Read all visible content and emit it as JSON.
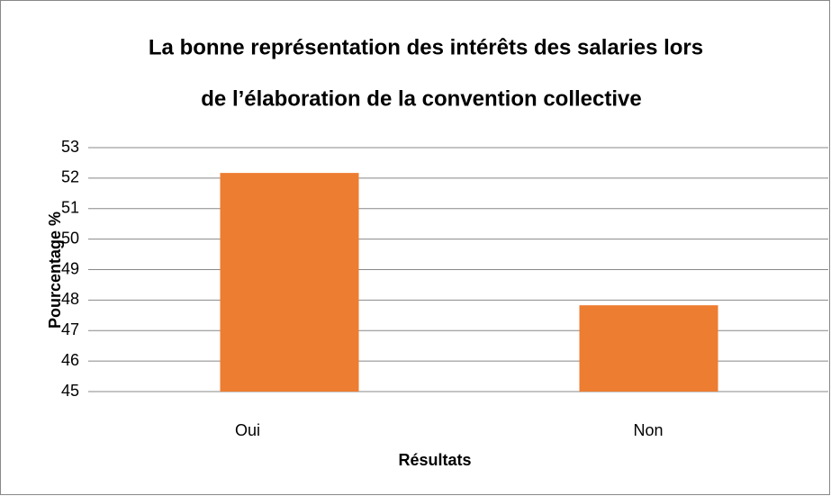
{
  "chart_data": {
    "type": "bar",
    "title": [
      "La bonne représentation des intérêts des salaries lors",
      "de l’élaboration de la convention collective"
    ],
    "x_label": "Résultats",
    "y_label": "Pourcentage %",
    "categories": [
      "Oui",
      "Non"
    ],
    "values": [
      52.17,
      47.83
    ],
    "color": "#ed7d31",
    "ylim": [
      45,
      53
    ],
    "yticks": [
      45,
      46,
      47,
      48,
      49,
      50,
      51,
      52,
      53
    ],
    "grid": true
  }
}
